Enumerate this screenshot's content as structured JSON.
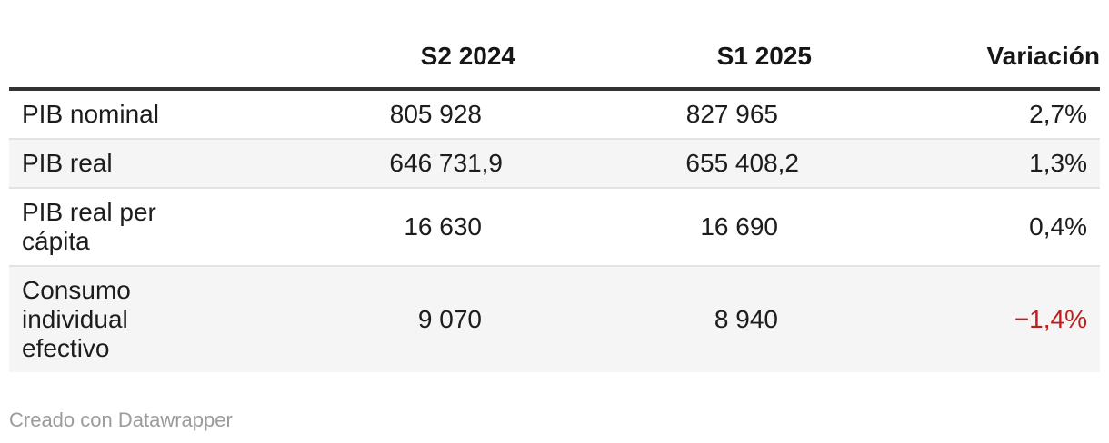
{
  "chart_data": {
    "type": "table",
    "columns": [
      {
        "label": "",
        "align": "left"
      },
      {
        "label": "S2 2024",
        "align": "right"
      },
      {
        "label": "S1 2025",
        "align": "right"
      },
      {
        "label": "Variación",
        "align": "right"
      }
    ],
    "rows": [
      {
        "label": "PIB nominal",
        "values": [
          "805 928",
          "827 965",
          "2,7%"
        ],
        "decimal_pad": [
          true,
          true,
          false
        ],
        "negative": false
      },
      {
        "label": "PIB real",
        "values": [
          "646 731,9",
          "655 408,2",
          "1,3%"
        ],
        "decimal_pad": [
          false,
          false,
          false
        ],
        "negative": false
      },
      {
        "label": "PIB real per cápita",
        "values": [
          "16 630",
          "16 690",
          "0,4%"
        ],
        "decimal_pad": [
          true,
          true,
          false
        ],
        "negative": false
      },
      {
        "label": "Consumo individual efectivo",
        "values": [
          "9 070",
          "8 940",
          "−1,4%"
        ],
        "decimal_pad": [
          true,
          true,
          false
        ],
        "negative": true
      }
    ],
    "layout": {
      "zebra_striping": true,
      "legend_position": "none",
      "grid": "row-separators"
    },
    "colors": {
      "header_rule": "#333333",
      "zebra": "#f5f5f5",
      "negative": "#c41c1c",
      "text": "#1d1d1d",
      "credit_text": "#9b9b9b"
    }
  },
  "footer": {
    "credit": "Creado con Datawrapper"
  }
}
